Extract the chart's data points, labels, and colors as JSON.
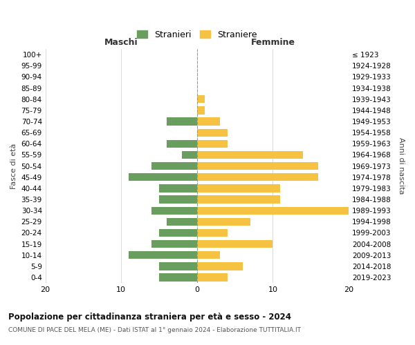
{
  "age_groups": [
    "100+",
    "95-99",
    "90-94",
    "85-89",
    "80-84",
    "75-79",
    "70-74",
    "65-69",
    "60-64",
    "55-59",
    "50-54",
    "45-49",
    "40-44",
    "35-39",
    "30-34",
    "25-29",
    "20-24",
    "15-19",
    "10-14",
    "5-9",
    "0-4"
  ],
  "birth_years": [
    "≤ 1923",
    "1924-1928",
    "1929-1933",
    "1934-1938",
    "1939-1943",
    "1944-1948",
    "1949-1953",
    "1954-1958",
    "1959-1963",
    "1964-1968",
    "1969-1973",
    "1974-1978",
    "1979-1983",
    "1984-1988",
    "1989-1993",
    "1994-1998",
    "1999-2003",
    "2004-2008",
    "2009-2013",
    "2014-2018",
    "2019-2023"
  ],
  "maschi": [
    0,
    0,
    0,
    0,
    0,
    0,
    4,
    0,
    4,
    2,
    6,
    9,
    5,
    5,
    6,
    4,
    5,
    6,
    9,
    5,
    5
  ],
  "femmine": [
    0,
    0,
    0,
    0,
    1,
    1,
    3,
    4,
    4,
    14,
    16,
    16,
    11,
    11,
    20,
    7,
    4,
    10,
    3,
    6,
    4
  ],
  "color_maschi": "#6a9e5f",
  "color_femmine": "#f5c242",
  "title": "Popolazione per cittadinanza straniera per età e sesso - 2024",
  "subtitle": "COMUNE DI PACE DEL MELA (ME) - Dati ISTAT al 1° gennaio 2024 - Elaborazione TUTTITALIA.IT",
  "xlabel_left": "Maschi",
  "xlabel_right": "Femmine",
  "ylabel_left": "Fasce di età",
  "ylabel_right": "Anni di nascita",
  "legend_maschi": "Stranieri",
  "legend_femmine": "Straniere",
  "xlim": 20,
  "background_color": "#ffffff",
  "grid_color": "#cccccc"
}
